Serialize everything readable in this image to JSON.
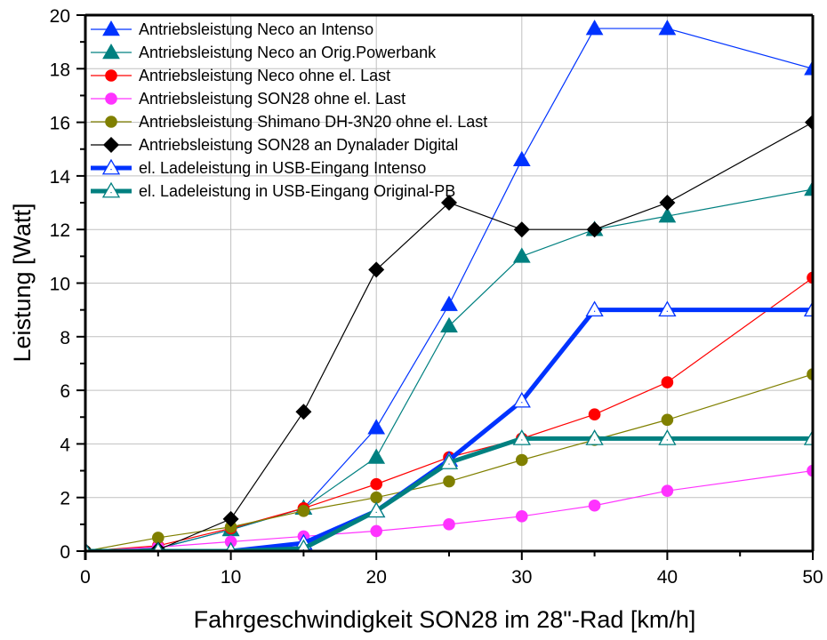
{
  "chart_data": {
    "type": "line",
    "title": "",
    "xlabel": "Fahrgeschwindigkeit SON28 im 28\"-Rad [km/h]",
    "ylabel": "Leistung [Watt]",
    "xlim": [
      0,
      50
    ],
    "ylim": [
      0,
      20
    ],
    "xticks": [
      0,
      10,
      20,
      30,
      40,
      50
    ],
    "yticks": [
      0,
      2,
      4,
      6,
      8,
      10,
      12,
      14,
      16,
      18,
      20
    ],
    "grid": true,
    "legend_position": "top-left",
    "series": [
      {
        "name": "Antriebsleistung Neco an Intenso",
        "color": "#0033FF",
        "marker": "triangle-filled",
        "line": "thin",
        "x": [
          0,
          5,
          10,
          15,
          20,
          25,
          30,
          35,
          40,
          50
        ],
        "y": [
          0,
          0.1,
          0.8,
          1.6,
          4.6,
          9.2,
          14.6,
          19.5,
          19.5,
          18.0
        ]
      },
      {
        "name": "Antriebsleistung Neco an Orig.Powerbank",
        "color": "#008080",
        "marker": "triangle-filled",
        "line": "thin",
        "x": [
          0,
          5,
          10,
          15,
          20,
          25,
          30,
          35,
          40,
          50
        ],
        "y": [
          0,
          0.1,
          0.8,
          1.6,
          3.5,
          8.4,
          11.0,
          12.0,
          12.5,
          13.5
        ]
      },
      {
        "name": "Antriebsleistung Neco ohne el. Last",
        "color": "#FF0000",
        "marker": "circle-filled",
        "line": "thin",
        "x": [
          0,
          5,
          10,
          15,
          20,
          25,
          30,
          35,
          40,
          50
        ],
        "y": [
          0,
          0.2,
          0.85,
          1.6,
          2.5,
          3.5,
          4.2,
          5.1,
          6.3,
          10.2
        ]
      },
      {
        "name": "Antriebsleistung SON28 ohne el. Last",
        "color": "#FF33FF",
        "marker": "circle-filled",
        "line": "thin",
        "x": [
          0,
          5,
          10,
          15,
          20,
          25,
          30,
          35,
          40,
          50
        ],
        "y": [
          0,
          0.15,
          0.35,
          0.55,
          0.75,
          1.0,
          1.3,
          1.7,
          2.25,
          3.0
        ]
      },
      {
        "name": "Antriebsleistung Shimano DH-3N20 ohne el. Last",
        "color": "#808000",
        "marker": "circle-filled",
        "line": "thin",
        "x": [
          0,
          5,
          10,
          15,
          20,
          25,
          30,
          35,
          40,
          50
        ],
        "y": [
          0,
          0.5,
          0.9,
          1.5,
          2.0,
          2.6,
          3.4,
          4.15,
          4.9,
          6.6
        ]
      },
      {
        "name": "Antriebsleistung SON28 an Dynalader Digital",
        "color": "#000000",
        "marker": "diamond-filled",
        "line": "thin",
        "x": [
          0,
          5,
          10,
          15,
          20,
          25,
          30,
          35,
          40,
          50
        ],
        "y": [
          0,
          0.05,
          1.2,
          5.2,
          10.5,
          13.0,
          12.0,
          12.0,
          13.0,
          16.0
        ]
      },
      {
        "name": "el. Ladeleistung in USB-Eingang Intenso",
        "color": "#0033FF",
        "marker": "triangle-open",
        "line": "thick",
        "x": [
          0,
          5,
          10,
          15,
          20,
          25,
          30,
          35,
          40,
          50
        ],
        "y": [
          0,
          0,
          0,
          0.3,
          1.5,
          3.4,
          5.6,
          9.0,
          9.0,
          9.0
        ]
      },
      {
        "name": "el. Ladeleistung in USB-Eingang Original-PB",
        "color": "#008080",
        "marker": "triangle-open",
        "line": "thick",
        "x": [
          0,
          5,
          10,
          15,
          20,
          25,
          30,
          35,
          40,
          50
        ],
        "y": [
          0,
          0,
          0,
          0.1,
          1.5,
          3.3,
          4.2,
          4.2,
          4.2,
          4.2
        ]
      }
    ]
  }
}
